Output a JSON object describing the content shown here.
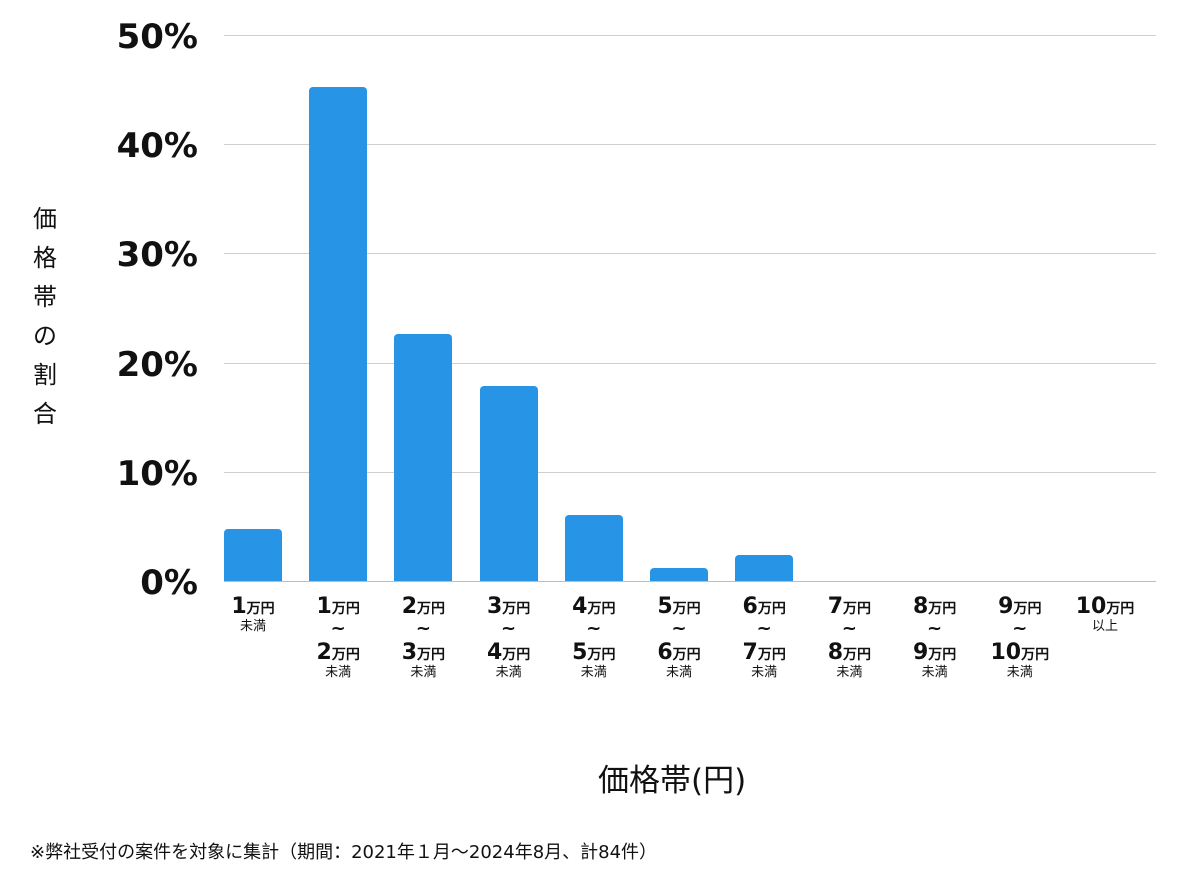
{
  "chart_data": {
    "type": "bar",
    "title": "",
    "xlabel": "価格帯(円)",
    "ylabel": "価格帯の割合",
    "ylim": [
      0,
      50
    ],
    "yticks": [
      "0%",
      "10%",
      "20%",
      "30%",
      "40%",
      "50%"
    ],
    "grid": true,
    "legend": null,
    "bar_color": "#2794e6",
    "categories": [
      "1万円未満",
      "1万円〜2万円未満",
      "2万円〜3万円未満",
      "3万円〜4万円未満",
      "4万円〜5万円未満",
      "5万円〜6万円未満",
      "6万円〜7万円未満",
      "7万円〜8万円未満",
      "8万円〜9万円未満",
      "9万円〜10万円未満",
      "10万円以上"
    ],
    "values": [
      4.8,
      45.2,
      22.6,
      17.9,
      6.0,
      1.2,
      2.4,
      0,
      0,
      0,
      0
    ],
    "counts_estimated": [
      4,
      38,
      19,
      15,
      5,
      1,
      2,
      0,
      0,
      0,
      0
    ],
    "note": "※弊社受付の案件を対象に集計（期間：2021年１月〜2024年8月、計84件）"
  },
  "axis": {
    "ylabel_chars": [
      "価",
      "格",
      "帯",
      "の",
      "割",
      "合"
    ],
    "xlabel": "価格帯(円)",
    "yticks": [
      {
        "label": "50%",
        "value": 50
      },
      {
        "label": "40%",
        "value": 40
      },
      {
        "label": "30%",
        "value": 30
      },
      {
        "label": "20%",
        "value": 20
      },
      {
        "label": "10%",
        "value": 10
      },
      {
        "label": "0%",
        "value": 0
      }
    ]
  },
  "xcats": [
    {
      "from": "1",
      "to": null,
      "suffix": "未満"
    },
    {
      "from": "1",
      "to": "2",
      "suffix": "未満"
    },
    {
      "from": "2",
      "to": "3",
      "suffix": "未満"
    },
    {
      "from": "3",
      "to": "4",
      "suffix": "未満"
    },
    {
      "from": "4",
      "to": "5",
      "suffix": "未満"
    },
    {
      "from": "5",
      "to": "6",
      "suffix": "未満"
    },
    {
      "from": "6",
      "to": "7",
      "suffix": "未満"
    },
    {
      "from": "7",
      "to": "8",
      "suffix": "未満"
    },
    {
      "from": "8",
      "to": "9",
      "suffix": "未満"
    },
    {
      "from": "9",
      "to": "10",
      "suffix": "未満"
    },
    {
      "from": "10",
      "to": null,
      "suffix": "以上"
    }
  ],
  "unit": "万円",
  "tilde": "~",
  "note": "※弊社受付の案件を対象に集計（期間：2021年１月〜2024年8月、計84件）"
}
